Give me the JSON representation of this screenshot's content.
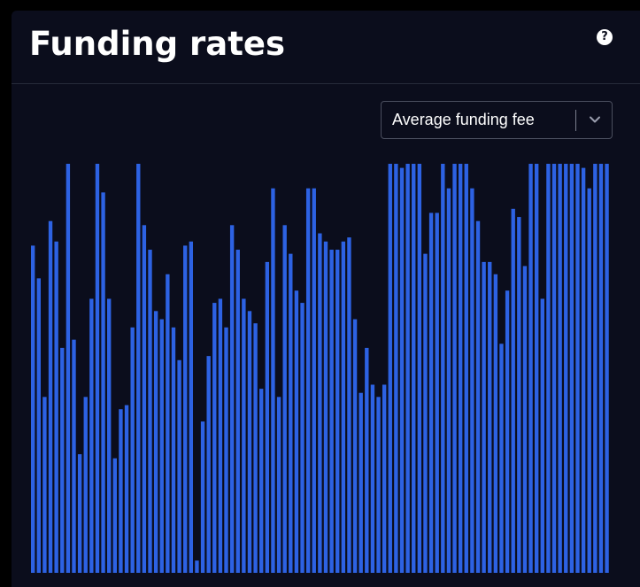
{
  "header": {
    "title": "Funding rates",
    "help_icon": "question-circle-icon",
    "help_symbol": "?"
  },
  "metric_select": {
    "selected": "Average funding fee",
    "icon": "chevron-down-icon"
  },
  "colors": {
    "panel_background": "#0b0d1c",
    "bar": "#2d62e3",
    "text": "#ffffff"
  },
  "chart_data": {
    "type": "bar",
    "title": "",
    "xlabel": "",
    "ylabel": "",
    "axes_visible": false,
    "grid": false,
    "ylim": [
      0,
      100
    ],
    "series": [
      {
        "values": [
          80,
          72,
          43,
          86,
          81,
          55,
          100,
          57,
          29,
          43,
          67,
          100,
          93,
          67,
          28,
          40,
          41,
          60,
          100,
          85,
          79,
          64,
          62,
          73,
          60,
          52,
          80,
          81,
          3,
          37,
          53,
          66,
          67,
          60,
          85,
          79,
          67,
          64,
          61,
          45,
          76,
          94,
          43,
          85,
          78,
          69,
          66,
          94,
          94,
          83,
          81,
          79,
          79,
          81,
          82,
          62,
          44,
          55,
          46,
          43,
          46,
          100,
          100,
          99,
          100,
          100,
          100,
          78,
          88,
          88,
          100,
          94,
          100,
          100,
          100,
          94,
          86,
          76,
          76,
          73,
          56,
          69,
          89,
          87,
          75,
          100,
          100,
          67,
          100,
          100,
          100,
          100,
          100,
          100,
          99,
          94,
          100,
          100,
          100
        ]
      }
    ]
  }
}
